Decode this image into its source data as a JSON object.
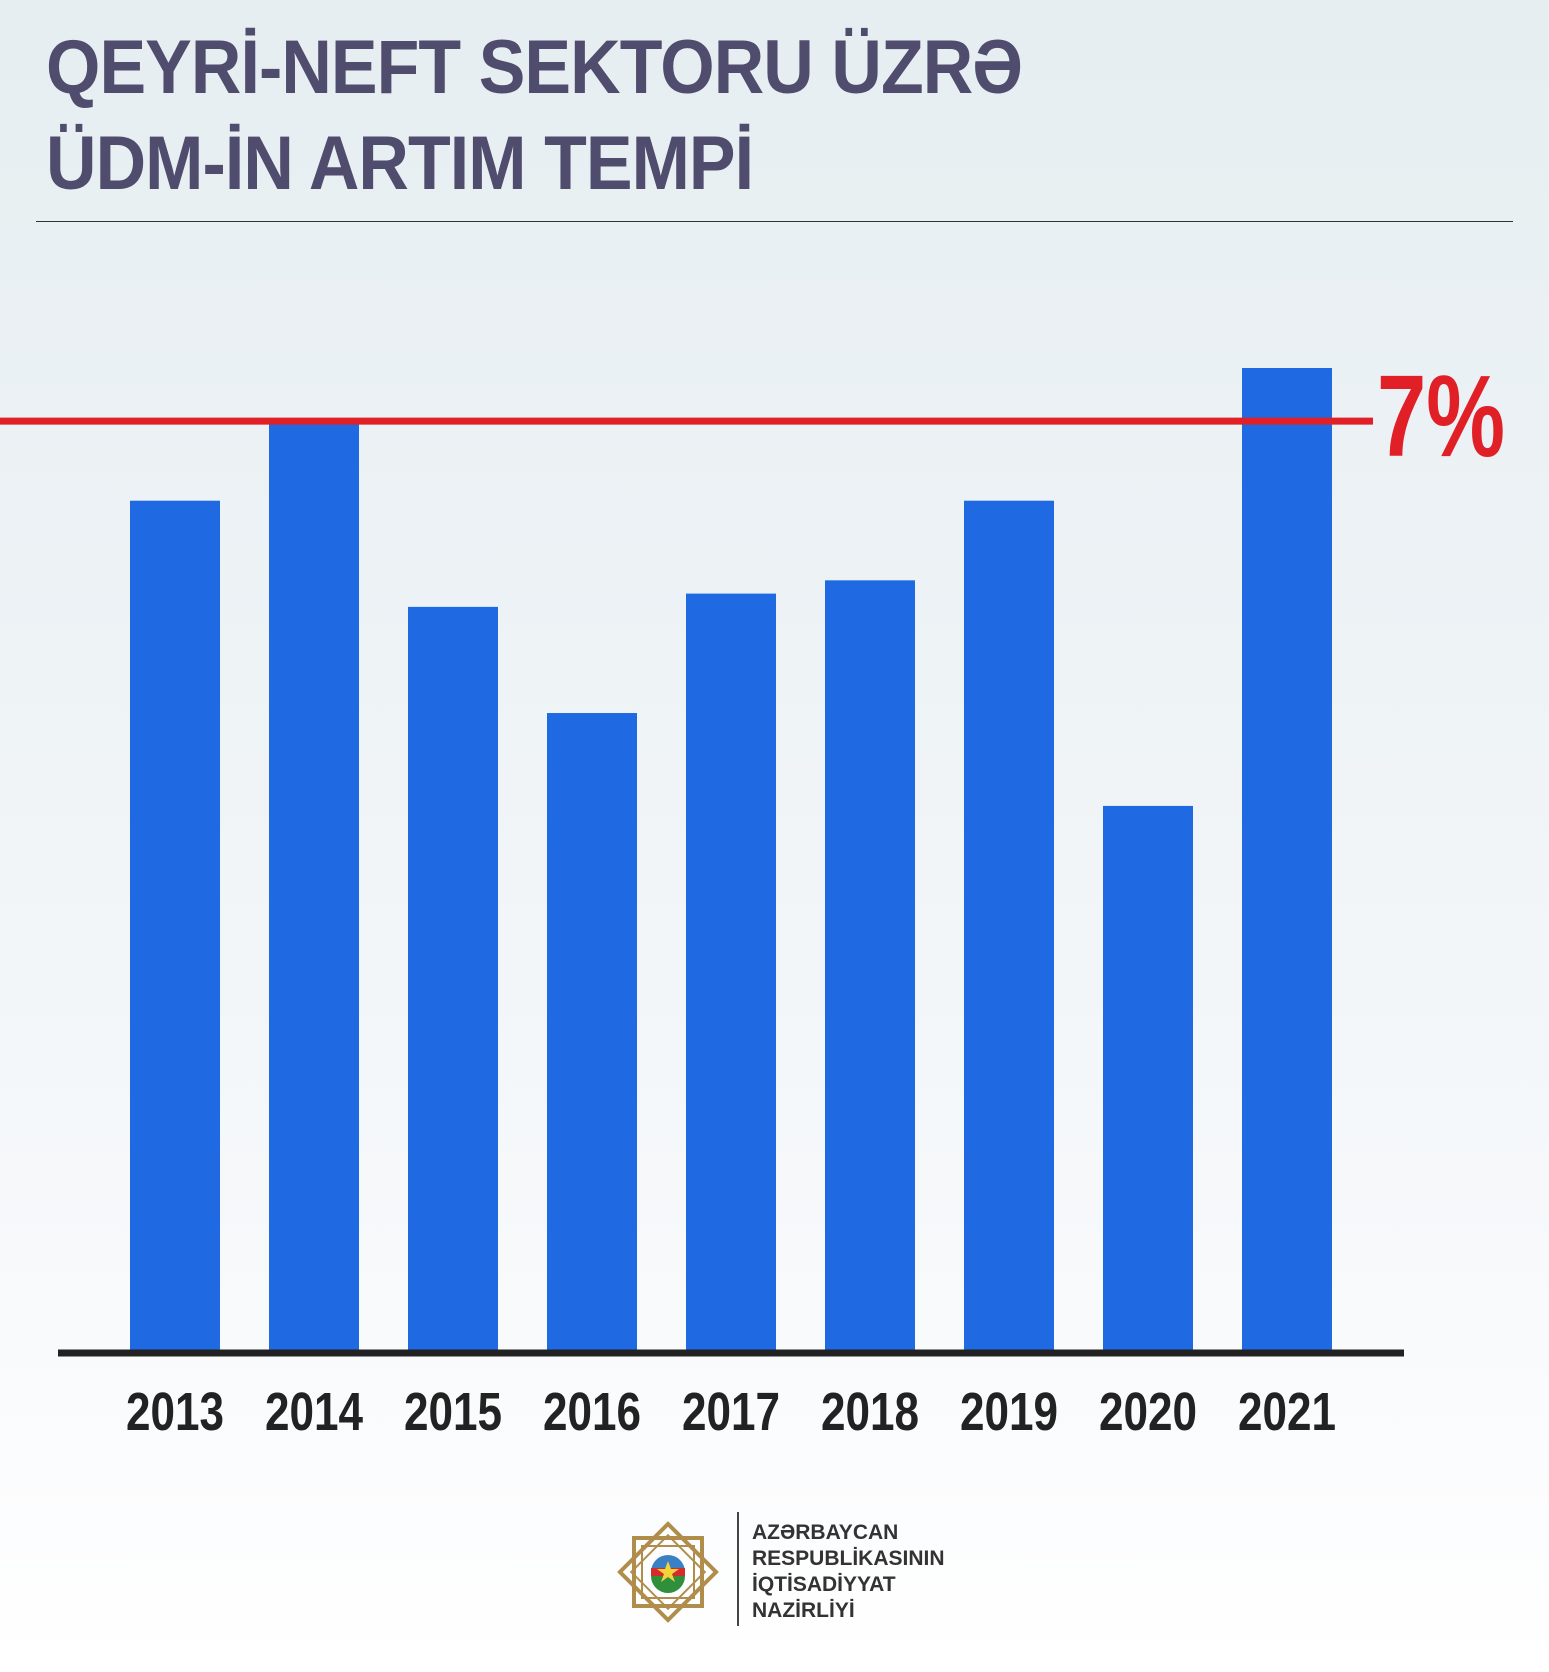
{
  "title": {
    "line1": "QEYRİ-NEFT SEKTORU ÜZRƏ",
    "line2": "ÜDM-İN ARTIM TEMPİ"
  },
  "chart_data": {
    "type": "bar",
    "title": "QEYRİ-NEFT SEKTORU ÜZRƏ ÜDM-İN ARTIM TEMPİ",
    "categories": [
      "2013",
      "2014",
      "2015",
      "2016",
      "2017",
      "2018",
      "2019",
      "2020",
      "2021"
    ],
    "values": [
      6.4,
      7.0,
      5.6,
      4.8,
      5.7,
      5.8,
      6.4,
      4.1,
      7.4
    ],
    "ylim": [
      0,
      7.4
    ],
    "reference_line": {
      "value": 7.0,
      "label": "7%"
    },
    "bar_color": "#1f69e2",
    "reference_color": "#e01f26",
    "axis_color": "#222222",
    "grid": false,
    "xlabel": "",
    "ylabel": ""
  },
  "footer": {
    "lines": [
      "AZƏRBAYCAN",
      "RESPUBLİKASININ",
      "İQTİSADİYYAT",
      "NAZİRLİYİ"
    ],
    "emblem_icon": "coat-of-arms-emblem"
  }
}
